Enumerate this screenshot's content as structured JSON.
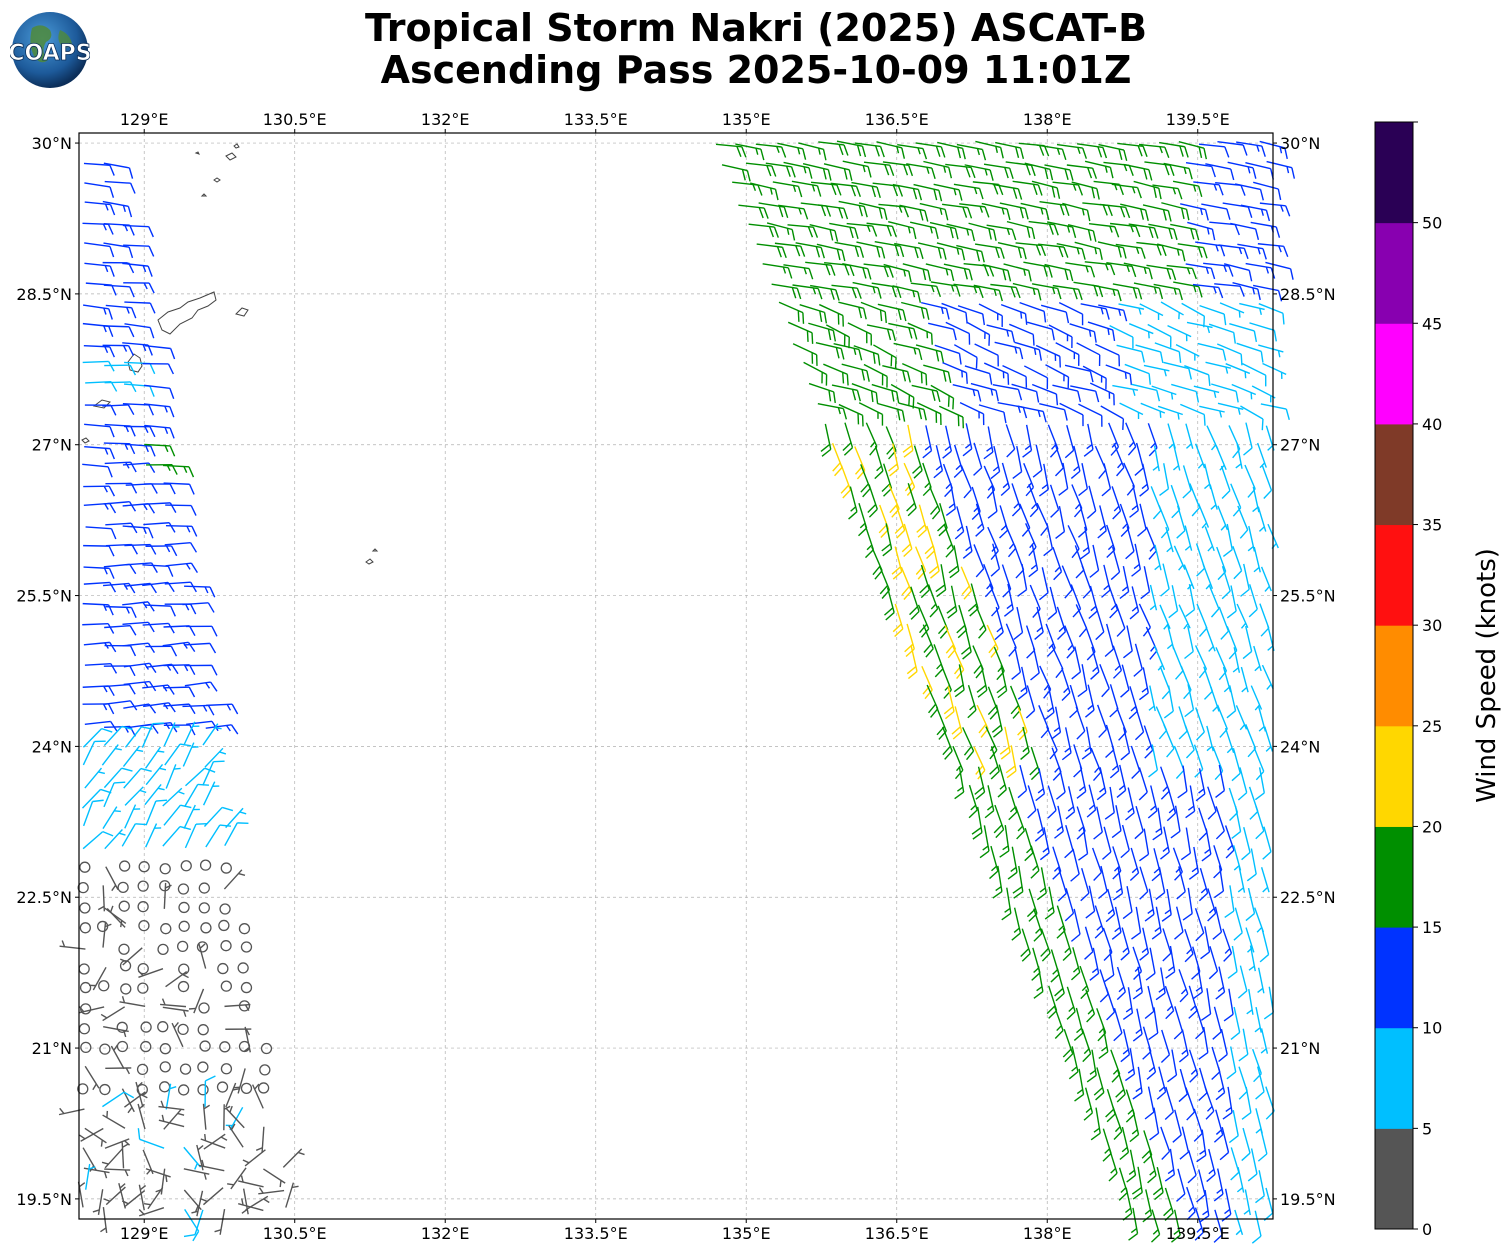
{
  "header": {
    "title_line1": "Tropical Storm Nakri (2025) ASCAT-B",
    "title_line2": "Ascending Pass 2025-10-09 11:01Z",
    "logo_text": "COAPS"
  },
  "map": {
    "lon_range": [
      128.35,
      140.25
    ],
    "lat_range": [
      19.3,
      30.1
    ],
    "lon_ticks": [
      129,
      130.5,
      132,
      133.5,
      135,
      136.5,
      138,
      139.5
    ],
    "lon_tick_labels": [
      "129°E",
      "130.5°E",
      "132°E",
      "133.5°E",
      "135°E",
      "136.5°E",
      "138°E",
      "139.5°E"
    ],
    "lat_ticks": [
      30,
      28.5,
      27,
      25.5,
      24,
      22.5,
      21,
      19.5
    ],
    "lat_tick_labels": [
      "30°N",
      "28.5°N",
      "27°N",
      "25.5°N",
      "24°N",
      "22.5°N",
      "21°N",
      "19.5°N"
    ],
    "grid": true,
    "swaths": [
      {
        "name": "west",
        "lon_west_edge": 128.35,
        "lon_east_edge_north": 128.7,
        "lon_east_edge_south": 130.5
      },
      {
        "name": "east",
        "lon_west_edge_north": 134.7,
        "lon_west_edge_south": 138.9,
        "lon_east_edge": 140.25
      }
    ]
  },
  "colorbar": {
    "title": "Wind Speed (knots)",
    "bins": [
      {
        "from": 0,
        "to": 5,
        "color": "#555555"
      },
      {
        "from": 5,
        "to": 10,
        "color": "#00bfff"
      },
      {
        "from": 10,
        "to": 15,
        "color": "#0033ff"
      },
      {
        "from": 15,
        "to": 20,
        "color": "#008f00"
      },
      {
        "from": 20,
        "to": 25,
        "color": "#ffd700"
      },
      {
        "from": 25,
        "to": 30,
        "color": "#ff8c00"
      },
      {
        "from": 30,
        "to": 35,
        "color": "#ff1010"
      },
      {
        "from": 35,
        "to": 40,
        "color": "#7f3a28"
      },
      {
        "from": 40,
        "to": 45,
        "color": "#ff00ff"
      },
      {
        "from": 45,
        "to": 50,
        "color": "#8800b0"
      },
      {
        "from": 50,
        "to": 55,
        "color": "#2a0055"
      }
    ],
    "tick_labels": [
      "0",
      "5",
      "10",
      "15",
      "20",
      "25",
      "30",
      "35",
      "40",
      "45",
      "50"
    ]
  }
}
